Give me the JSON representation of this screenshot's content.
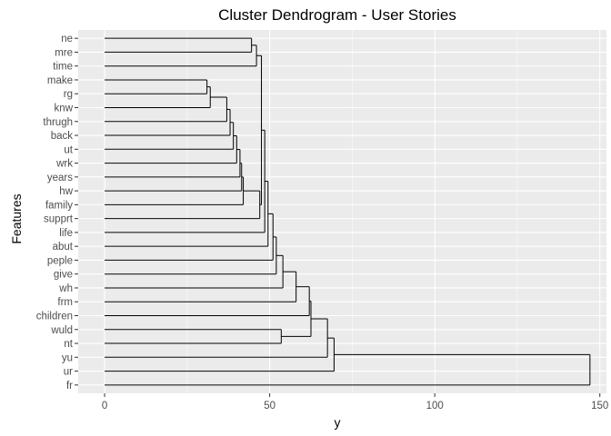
{
  "chart_data": {
    "type": "dendrogram",
    "title": "Cluster Dendrogram - User Stories",
    "xlabel": "y",
    "ylabel": "Features",
    "xlim": [
      -8,
      152
    ],
    "x_ticks": [
      0,
      50,
      100,
      150
    ],
    "grid": true,
    "leaves": [
      "fr",
      "ur",
      "yu",
      "nt",
      "wuld",
      "children",
      "frm",
      "wh",
      "give",
      "peple",
      "abut",
      "life",
      "supprt",
      "family",
      "hw",
      "years",
      "wrk",
      "ut",
      "back",
      "thrugh",
      "knw",
      "rg",
      "make",
      "time",
      "mre",
      "ne"
    ],
    "merges": [
      {
        "a": "rg",
        "b": "make",
        "height": 31
      },
      {
        "a": "knw",
        "b": "m1",
        "height": 32
      },
      {
        "a": "thrugh",
        "b": "m2",
        "height": 37
      },
      {
        "a": "back",
        "b": "m3",
        "height": 38
      },
      {
        "a": "ut",
        "b": "m4",
        "height": 39
      },
      {
        "a": "wrk",
        "b": "m5",
        "height": 40
      },
      {
        "a": "years",
        "b": "m6",
        "height": 41
      },
      {
        "a": "hw",
        "b": "m7",
        "height": 41.5
      },
      {
        "a": "family",
        "b": "m8",
        "height": 42
      },
      {
        "a": "mre",
        "b": "ne",
        "height": 44.5
      },
      {
        "a": "time",
        "b": "m10",
        "height": 46
      },
      {
        "a": "supprt",
        "b": "m9",
        "height": 47
      },
      {
        "a": "m12",
        "b": "m11",
        "height": 47.5
      },
      {
        "a": "life",
        "b": "m13",
        "height": 48.5
      },
      {
        "a": "abut",
        "b": "m14",
        "height": 49.5
      },
      {
        "a": "peple",
        "b": "m15",
        "height": 51
      },
      {
        "a": "give",
        "b": "m16",
        "height": 52
      },
      {
        "a": "wh",
        "b": "m17",
        "height": 54
      },
      {
        "a": "nt",
        "b": "wuld",
        "height": 53.5
      },
      {
        "a": "frm",
        "b": "m18",
        "height": 58
      },
      {
        "a": "children",
        "b": "m20",
        "height": 62
      },
      {
        "a": "m19",
        "b": "m21",
        "height": 62.5
      },
      {
        "a": "yu",
        "b": "m22",
        "height": 67.5
      },
      {
        "a": "ur",
        "b": "m23",
        "height": 69.5
      },
      {
        "a": "fr",
        "b": "m24",
        "height": 147
      }
    ]
  }
}
